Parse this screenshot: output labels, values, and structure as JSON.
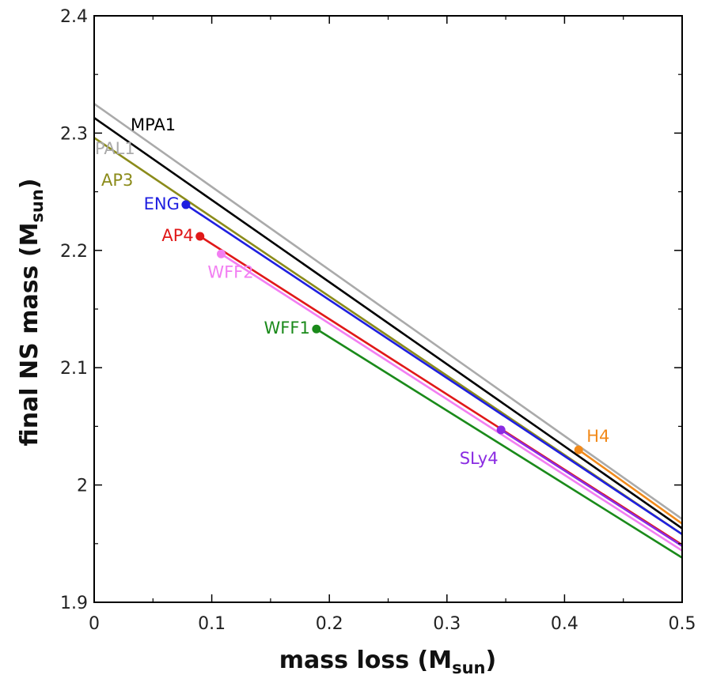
{
  "chart_data": {
    "type": "line",
    "xlabel": "mass loss (M",
    "xlabel_sub": "sun",
    "xlabel_end": ")",
    "ylabel": "final NS mass (M",
    "ylabel_sub": "sun",
    "ylabel_end": ")",
    "xlim": [
      0,
      0.5
    ],
    "ylim": [
      1.9,
      2.4
    ],
    "xticks": [
      0,
      0.1,
      0.2,
      0.3,
      0.4,
      0.5
    ],
    "xtick_labels": [
      "0",
      "0.1",
      "0.2",
      "0.3",
      "0.4",
      "0.5"
    ],
    "yticks": [
      1.9,
      2.0,
      2.1,
      2.2,
      2.3,
      2.4
    ],
    "ytick_labels": [
      "1.9",
      "2",
      "2.1",
      "2.2",
      "2.3",
      "2.4"
    ],
    "grid": false,
    "series": [
      {
        "name": "PAL1",
        "color": "#aaaaaa",
        "x": [
          0,
          0.5
        ],
        "y": [
          2.325,
          1.971
        ],
        "marker": false
      },
      {
        "name": "MPA1",
        "color": "#000000",
        "x": [
          0,
          0.5
        ],
        "y": [
          2.313,
          1.963
        ],
        "marker": false
      },
      {
        "name": "AP3",
        "color": "#8b8b1a",
        "x": [
          0,
          0.5
        ],
        "y": [
          2.296,
          1.958
        ],
        "marker": false
      },
      {
        "name": "ENG",
        "color": "#1f1fe0",
        "x": [
          0.078,
          0.5
        ],
        "y": [
          2.239,
          1.958
        ],
        "marker": true
      },
      {
        "name": "AP4",
        "color": "#e01818",
        "x": [
          0.09,
          0.5
        ],
        "y": [
          2.212,
          1.949
        ],
        "marker": true
      },
      {
        "name": "WFF2",
        "color": "#f27ef2",
        "x": [
          0.108,
          0.5
        ],
        "y": [
          2.197,
          1.944
        ],
        "marker": true
      },
      {
        "name": "WFF1",
        "color": "#1a8a1a",
        "x": [
          0.189,
          0.5
        ],
        "y": [
          2.133,
          1.938
        ],
        "marker": true
      },
      {
        "name": "SLy4",
        "color": "#8a2be2",
        "x": [
          0.346,
          0.5
        ],
        "y": [
          2.047,
          1.948
        ],
        "marker": true
      },
      {
        "name": "H4",
        "color": "#f28a1a",
        "x": [
          0.412,
          0.5
        ],
        "y": [
          2.03,
          1.967
        ],
        "marker": true
      }
    ]
  }
}
